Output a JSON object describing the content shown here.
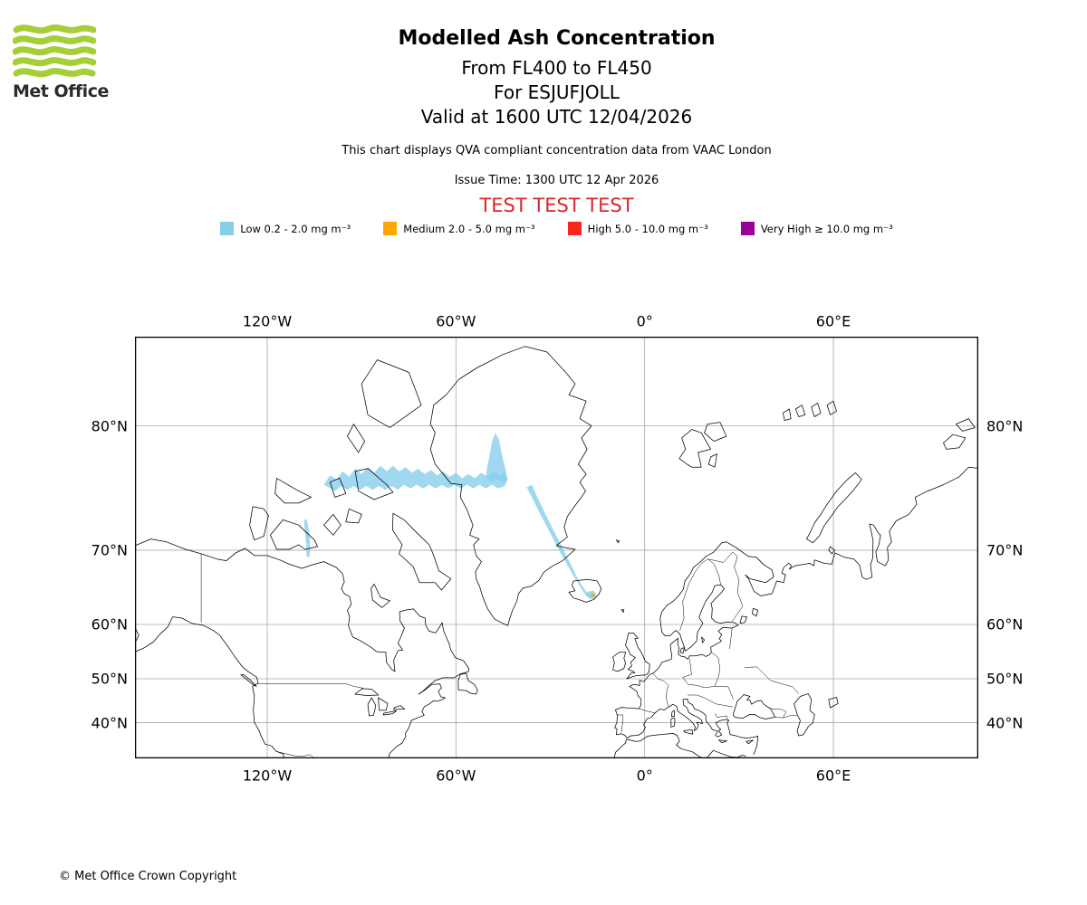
{
  "header": {
    "logo_text": "Met Office",
    "title": "Modelled Ash Concentration",
    "subtitle_lines": [
      "From FL400 to FL450",
      "For ESJUFJOLL",
      "Valid at 1600 UTC 12/04/2026"
    ],
    "description": "This chart displays QVA compliant concentration data from VAAC London",
    "issue_time": "Issue Time: 1300 UTC 12 Apr 2026",
    "test_banner": "TEST TEST TEST"
  },
  "colors": {
    "brand_green": "#a6ce39",
    "logo_text": "#2b2b2b",
    "test_red": "#d62728",
    "low_blue": "#87ceeb",
    "medium_orange": "#ffa500",
    "high_red": "#f8281d",
    "very_high_purple": "#9c009c"
  },
  "legend": {
    "items": [
      {
        "label": "Low 0.2 - 2.0 mg m⁻³",
        "color": "#87ceeb"
      },
      {
        "label": "Medium 2.0 - 5.0 mg m⁻³",
        "color": "#ffa500"
      },
      {
        "label": "High 5.0 - 10.0 mg m⁻³",
        "color": "#f8281d"
      },
      {
        "label": "Very High ≥ 10.0 mg m⁻³",
        "color": "#9c009c"
      }
    ]
  },
  "chart_data": {
    "type": "map",
    "projection": "mercator",
    "region": "North Atlantic / Arctic",
    "extent_lon": [
      -162.1,
      106.1
    ],
    "extent_lat": [
      30.6,
      84.0
    ],
    "grid": {
      "lon_ticks": [
        -120,
        -60,
        0,
        60
      ],
      "lat_ticks": [
        80,
        70,
        60,
        50,
        40
      ]
    },
    "tick_labels": {
      "lon": [
        "120°W",
        "60°W",
        "0°",
        "60°E"
      ],
      "lat": [
        "80°N",
        "70°N",
        "60°N",
        "50°N",
        "40°N"
      ]
    },
    "ash_areas": [
      {
        "name": "low-band-arctic-canada-to-greenland",
        "level": "Low",
        "color": "#87ceeb",
        "opacity": 0.8,
        "polygon": [
          [
            -102.0,
            76.1
          ],
          [
            -100.0,
            76.8
          ],
          [
            -98.0,
            76.5
          ],
          [
            -96.0,
            77.1
          ],
          [
            -94.0,
            76.7
          ],
          [
            -92.0,
            77.3
          ],
          [
            -90.0,
            76.9
          ],
          [
            -88.0,
            77.4
          ],
          [
            -86.0,
            77.0
          ],
          [
            -84.0,
            77.5
          ],
          [
            -82.0,
            77.1
          ],
          [
            -80.0,
            77.5
          ],
          [
            -78.0,
            77.1
          ],
          [
            -76.0,
            77.4
          ],
          [
            -74.0,
            77.0
          ],
          [
            -72.0,
            77.3
          ],
          [
            -70.0,
            76.9
          ],
          [
            -68.0,
            77.2
          ],
          [
            -66.0,
            76.8
          ],
          [
            -64.0,
            77.1
          ],
          [
            -62.0,
            76.7
          ],
          [
            -60.0,
            77.0
          ],
          [
            -58.0,
            76.6
          ],
          [
            -56.0,
            76.9
          ],
          [
            -54.0,
            76.6
          ],
          [
            -52.0,
            77.0
          ],
          [
            -50.0,
            76.7
          ],
          [
            -48.0,
            77.1
          ],
          [
            -46.0,
            76.8
          ],
          [
            -44.5,
            77.0
          ],
          [
            -43.5,
            76.5
          ],
          [
            -44.5,
            76.0
          ],
          [
            -46.5,
            75.8
          ],
          [
            -48.5,
            76.1
          ],
          [
            -50.5,
            75.8
          ],
          [
            -52.5,
            76.1
          ],
          [
            -54.5,
            75.8
          ],
          [
            -56.5,
            76.1
          ],
          [
            -58.5,
            75.8
          ],
          [
            -60.5,
            76.1
          ],
          [
            -62.5,
            75.8
          ],
          [
            -64.5,
            76.1
          ],
          [
            -66.5,
            75.8
          ],
          [
            -68.5,
            76.1
          ],
          [
            -70.5,
            75.8
          ],
          [
            -72.5,
            76.1
          ],
          [
            -74.5,
            75.8
          ],
          [
            -76.5,
            76.1
          ],
          [
            -78.5,
            75.7
          ],
          [
            -80.5,
            76.0
          ],
          [
            -82.5,
            75.7
          ],
          [
            -84.5,
            76.0
          ],
          [
            -86.5,
            75.7
          ],
          [
            -88.5,
            76.0
          ],
          [
            -90.5,
            75.7
          ],
          [
            -92.5,
            76.0
          ],
          [
            -94.5,
            75.7
          ],
          [
            -96.5,
            76.0
          ],
          [
            -98.5,
            75.6
          ],
          [
            -100.5,
            75.9
          ]
        ]
      },
      {
        "name": "low-plume-northwest-greenland",
        "level": "Low",
        "color": "#87ceeb",
        "opacity": 0.8,
        "polygon": [
          [
            -47.5,
            79.6
          ],
          [
            -46.3,
            79.2
          ],
          [
            -45.6,
            78.5
          ],
          [
            -44.9,
            77.8
          ],
          [
            -44.1,
            77.1
          ],
          [
            -43.6,
            76.5
          ],
          [
            -45.0,
            76.3
          ],
          [
            -47.0,
            76.5
          ],
          [
            -49.0,
            76.3
          ],
          [
            -50.5,
            76.7
          ],
          [
            -50.0,
            77.5
          ],
          [
            -49.2,
            78.3
          ],
          [
            -48.5,
            79.1
          ]
        ]
      },
      {
        "name": "low-streak-east-greenland-to-iceland",
        "level": "Low",
        "color": "#87ceeb",
        "opacity": 0.8,
        "polygon": [
          [
            -37.5,
            75.9
          ],
          [
            -35.8,
            76.1
          ],
          [
            -34.5,
            75.3
          ],
          [
            -32.5,
            74.2
          ],
          [
            -30.5,
            73.0
          ],
          [
            -28.5,
            71.8
          ],
          [
            -26.5,
            70.5
          ],
          [
            -24.8,
            69.3
          ],
          [
            -23.2,
            68.2
          ],
          [
            -21.8,
            67.0
          ],
          [
            -20.2,
            65.9
          ],
          [
            -18.8,
            65.0
          ],
          [
            -17.6,
            64.4
          ],
          [
            -16.8,
            64.1
          ],
          [
            -17.4,
            63.9
          ],
          [
            -18.6,
            64.3
          ],
          [
            -20.0,
            65.2
          ],
          [
            -21.6,
            66.3
          ],
          [
            -23.4,
            67.5
          ],
          [
            -25.2,
            68.7
          ],
          [
            -27.2,
            70.0
          ],
          [
            -29.2,
            71.3
          ],
          [
            -31.2,
            72.5
          ],
          [
            -33.5,
            73.8
          ],
          [
            -35.5,
            74.9
          ]
        ]
      },
      {
        "name": "low-patch-southeast-iceland",
        "level": "Low",
        "color": "#87ceeb",
        "opacity": 0.8,
        "polygon": [
          [
            -18.2,
            64.9
          ],
          [
            -16.2,
            65.0
          ],
          [
            -15.3,
            64.5
          ],
          [
            -15.8,
            63.9
          ],
          [
            -17.6,
            63.9
          ],
          [
            -18.4,
            64.4
          ]
        ]
      },
      {
        "name": "low-streak-victoria-island",
        "level": "Low",
        "color": "#87ceeb",
        "opacity": 0.8,
        "polygon": [
          [
            -108.3,
            73.0
          ],
          [
            -107.4,
            73.2
          ],
          [
            -106.6,
            71.8
          ],
          [
            -106.3,
            70.3
          ],
          [
            -106.6,
            69.2
          ],
          [
            -107.5,
            69.3
          ],
          [
            -107.6,
            70.6
          ],
          [
            -108.0,
            71.8
          ]
        ]
      },
      {
        "name": "medium-spot-esjufjoll",
        "level": "Medium",
        "color": "#ffa500",
        "opacity": 1,
        "polygon": [
          [
            -17.0,
            64.6
          ],
          [
            -16.1,
            64.6
          ],
          [
            -15.8,
            64.3
          ],
          [
            -16.6,
            64.1
          ],
          [
            -17.1,
            64.3
          ]
        ]
      }
    ]
  },
  "footer": {
    "copyright": "© Met Office Crown Copyright"
  }
}
